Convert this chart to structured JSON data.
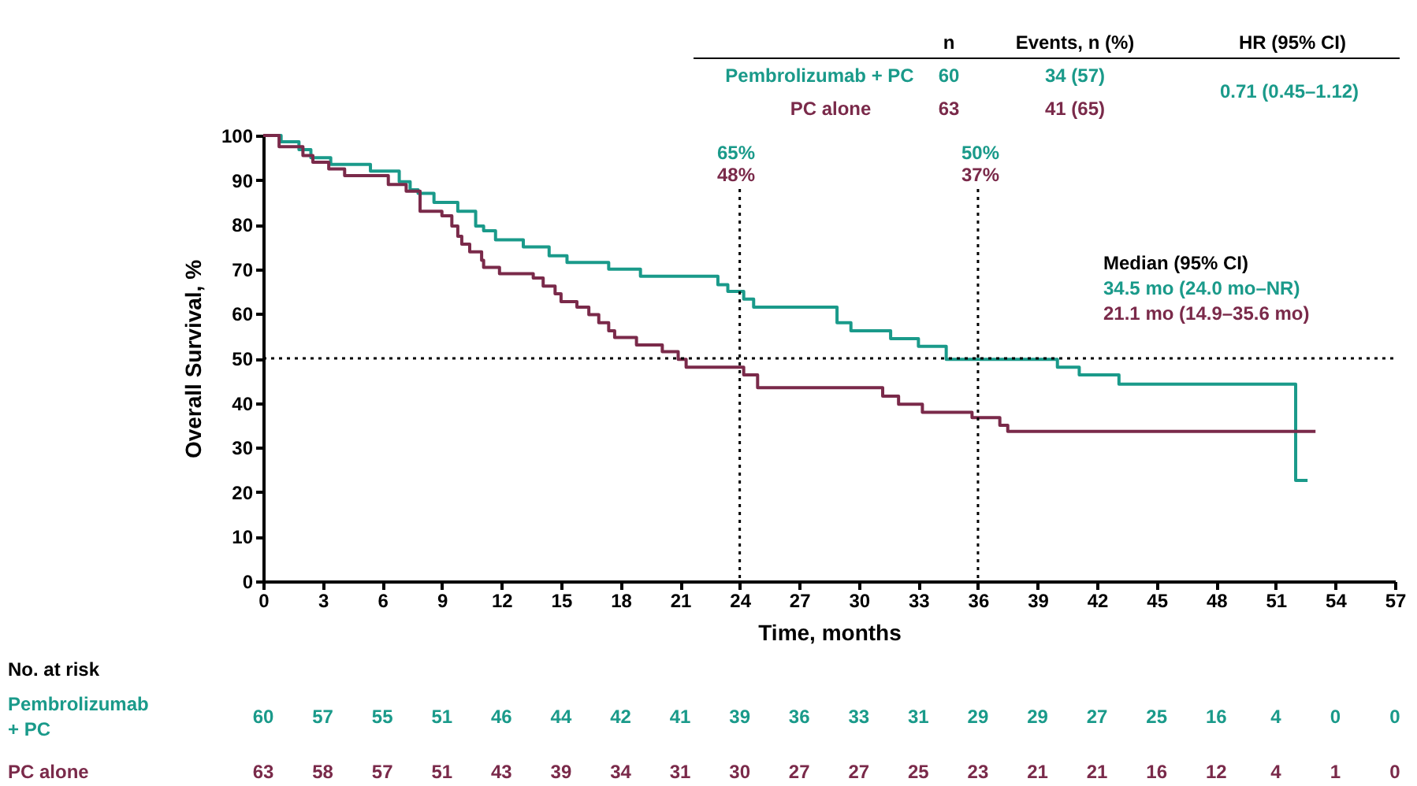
{
  "chart_data": {
    "type": "step",
    "xlabel": "Time, months",
    "ylabel": "Overall Survival, %",
    "xlim": [
      0,
      57
    ],
    "xticks": [
      0,
      3,
      6,
      9,
      12,
      15,
      18,
      21,
      24,
      27,
      30,
      33,
      36,
      39,
      42,
      45,
      48,
      51,
      54,
      57
    ],
    "ylim": [
      0,
      100
    ],
    "yticks": [
      0,
      10,
      20,
      30,
      40,
      50,
      60,
      70,
      80,
      90,
      100
    ],
    "grid": false,
    "legend": "top right",
    "line_style": "solid",
    "marker": "none",
    "series": [
      {
        "name": "Pembrolizumab + PC",
        "color": "#1a9a8a",
        "x": [
          0,
          0.9,
          1.8,
          2.4,
          3.4,
          5.4,
          6.85,
          7.4,
          7.8,
          8.6,
          9.8,
          10.7,
          11.1,
          11.7,
          13.1,
          14.4,
          15.3,
          17.4,
          19,
          22.9,
          23.4,
          24.2,
          24.7,
          28.9,
          29.6,
          31.6,
          33,
          34.4,
          40,
          41.1,
          43.1,
          52,
          52.6
        ],
        "values": [
          100,
          98.6,
          96.8,
          95,
          93.5,
          92,
          89.6,
          87.8,
          87,
          85,
          83,
          79.7,
          78.6,
          76.6,
          75,
          73,
          71.5,
          70,
          68.4,
          66.5,
          65,
          63.3,
          61.5,
          58,
          56.2,
          54.4,
          52.7,
          49.8,
          48,
          46.3,
          44.2,
          22.6,
          22.6
        ]
      },
      {
        "name": "PC alone",
        "color": "#7a2a4a",
        "x": [
          0,
          0.8,
          2,
          2.5,
          3.3,
          4.1,
          6.3,
          7.2,
          7.9,
          9,
          9.5,
          9.8,
          10,
          10.4,
          11,
          11.1,
          11.9,
          13.6,
          14.1,
          14.7,
          15,
          15.8,
          16.4,
          16.9,
          17.4,
          17.7,
          18.8,
          20.1,
          20.9,
          21.3,
          24.2,
          24.9,
          31.2,
          32,
          33.2,
          35.7,
          37.1,
          37.5,
          53
        ],
        "values": [
          100,
          97.5,
          95.5,
          94,
          92.5,
          91,
          89,
          87.5,
          83,
          82,
          79.7,
          77.4,
          75.6,
          73.9,
          72,
          70.4,
          69,
          68,
          66.2,
          64.5,
          62.7,
          61.5,
          59.8,
          58,
          56.2,
          54.7,
          53,
          51.5,
          49.8,
          48,
          46.3,
          43.4,
          41.5,
          39.7,
          37.9,
          36.7,
          35,
          33.6,
          33.6
        ]
      }
    ],
    "ref_lines": [
      {
        "axis": "y",
        "value": 50,
        "line_style": "dotted",
        "color": "#000000"
      },
      {
        "axis": "x",
        "value": 24,
        "line_style": "dotted",
        "color": "#000000"
      },
      {
        "axis": "x",
        "value": 36,
        "line_style": "dotted",
        "color": "#000000"
      }
    ],
    "annotations": [
      "n",
      "Events, n (%)",
      "HR (95% CI)",
      "60",
      "34 (57)",
      "63",
      "41 (65)",
      "0.71 (0.45–1.12)",
      "65%",
      "48%",
      "50%",
      "37%",
      "Median (95% CI)",
      "34.5 mo (24.0 mo–NR)",
      "21.1 mo (14.9–35.6 mo)",
      "No. at risk",
      "60 57 55 51 46 44 42 41 39 36 33 31 29 29 27 25 16 4 0 0",
      "63 58 57 51 43 39 34 31 30 27 27 25 23 21 21 16 12 4 1 0"
    ]
  }
}
